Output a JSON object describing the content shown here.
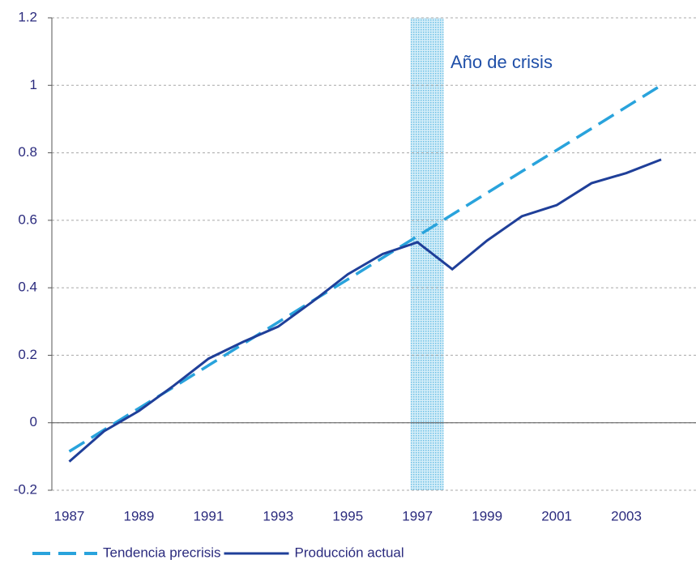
{
  "chart_data": {
    "type": "line",
    "annotation": "Año de crisis",
    "x": [
      1987,
      1988,
      1989,
      1990,
      1991,
      1992,
      1993,
      1994,
      1995,
      1996,
      1997,
      1998,
      1999,
      2000,
      2001,
      2002,
      2003,
      2004
    ],
    "series": [
      {
        "name": "Tendencia precrisis",
        "color": "#29a3dc",
        "dash": true,
        "values": [
          -0.085,
          -0.021,
          0.043,
          0.106,
          0.17,
          0.234,
          0.298,
          0.362,
          0.425,
          0.489,
          0.553,
          0.617,
          0.681,
          0.745,
          0.808,
          0.872,
          0.936,
          1.0
        ]
      },
      {
        "name": "Producción actual",
        "color": "#1f3f99",
        "dash": false,
        "values": [
          -0.115,
          -0.025,
          0.035,
          0.11,
          0.19,
          0.24,
          0.285,
          0.36,
          0.44,
          0.5,
          0.535,
          0.455,
          0.54,
          0.612,
          0.645,
          0.71,
          0.74,
          0.78
        ]
      }
    ],
    "crisis_band": [
      1996.8,
      1997.75
    ],
    "xlim": [
      1986.5,
      2005.0
    ],
    "xticks": [
      1987,
      1989,
      1991,
      1993,
      1995,
      1997,
      1999,
      2001,
      2003
    ],
    "ylim": [
      -0.2,
      1.2
    ],
    "yticks": [
      -0.2,
      0,
      0.2,
      0.4,
      0.6,
      0.8,
      1,
      1.2
    ],
    "grid": true
  }
}
